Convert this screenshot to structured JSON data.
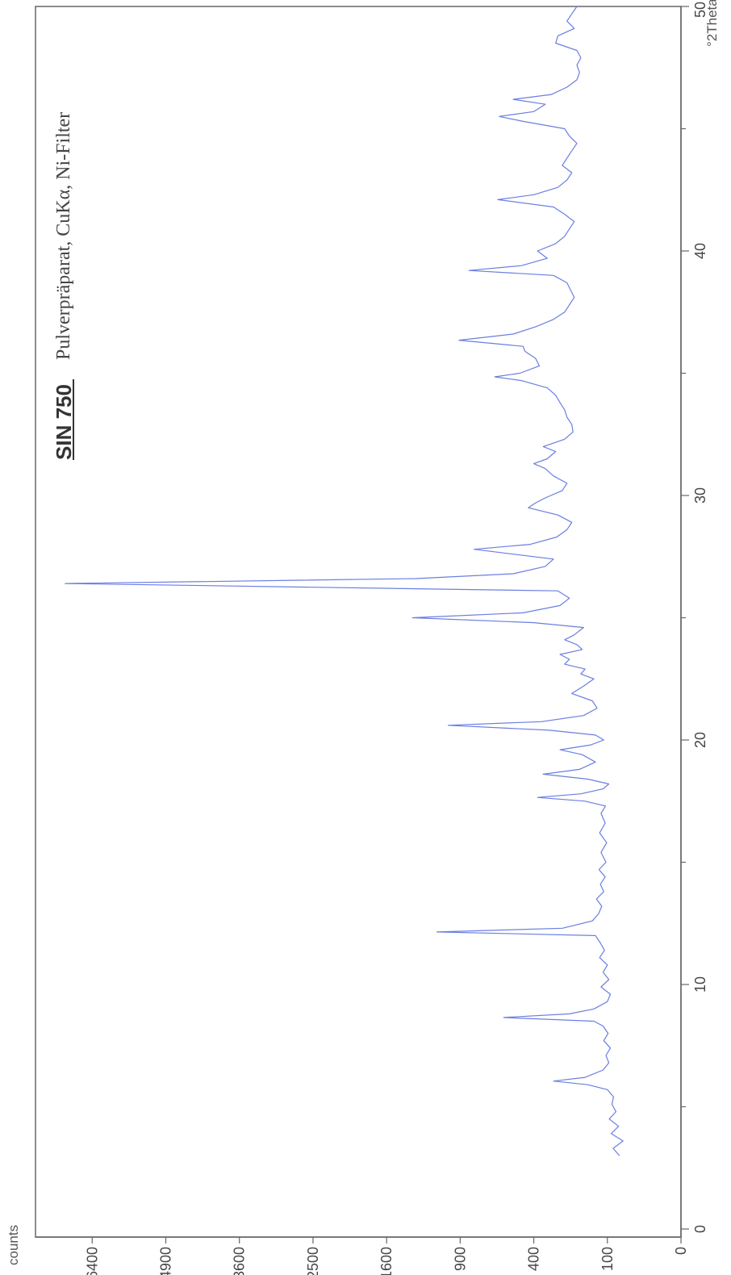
{
  "chart_data": {
    "type": "line",
    "title": "SIN 750",
    "subtitle": "Pulverpräparat, CuKα, Ni-Filter",
    "xlabel": "°2Theta",
    "ylabel": "counts",
    "xlim": [
      0,
      50
    ],
    "ylim": [
      0,
      7200
    ],
    "y_scale": "sqrt",
    "x_ticks": [
      "0",
      "10",
      "20",
      "30",
      "40",
      "50"
    ],
    "y_ticks": [
      "0",
      "100",
      "400",
      "900",
      "1600",
      "2500",
      "3600",
      "4900",
      "6400"
    ],
    "grid": false,
    "line_color": "#6b7ee0",
    "series": [
      {
        "points": [
          [
            3.0,
            70
          ],
          [
            3.3,
            85
          ],
          [
            3.6,
            62
          ],
          [
            3.9,
            90
          ],
          [
            4.2,
            72
          ],
          [
            4.5,
            95
          ],
          [
            4.8,
            78
          ],
          [
            5.1,
            88
          ],
          [
            5.4,
            84
          ],
          [
            5.7,
            100
          ],
          [
            5.9,
            160
          ],
          [
            6.05,
            300
          ],
          [
            6.2,
            170
          ],
          [
            6.5,
            112
          ],
          [
            6.8,
            96
          ],
          [
            7.1,
            104
          ],
          [
            7.4,
            92
          ],
          [
            7.7,
            110
          ],
          [
            8.0,
            98
          ],
          [
            8.3,
            112
          ],
          [
            8.5,
            140
          ],
          [
            8.65,
            580
          ],
          [
            8.8,
            230
          ],
          [
            9.0,
            140
          ],
          [
            9.3,
            100
          ],
          [
            9.6,
            92
          ],
          [
            9.9,
            118
          ],
          [
            10.2,
            96
          ],
          [
            10.5,
            112
          ],
          [
            10.8,
            100
          ],
          [
            11.1,
            122
          ],
          [
            11.4,
            108
          ],
          [
            11.7,
            120
          ],
          [
            12.0,
            135
          ],
          [
            12.15,
            1100
          ],
          [
            12.3,
            260
          ],
          [
            12.6,
            145
          ],
          [
            12.9,
            125
          ],
          [
            13.2,
            116
          ],
          [
            13.5,
            132
          ],
          [
            13.8,
            110
          ],
          [
            14.1,
            120
          ],
          [
            14.4,
            106
          ],
          [
            14.7,
            124
          ],
          [
            15.0,
            104
          ],
          [
            15.4,
            118
          ],
          [
            15.8,
            102
          ],
          [
            16.2,
            122
          ],
          [
            16.6,
            106
          ],
          [
            17.0,
            118
          ],
          [
            17.3,
            105
          ],
          [
            17.5,
            170
          ],
          [
            17.65,
            380
          ],
          [
            17.8,
            185
          ],
          [
            18.0,
            112
          ],
          [
            18.2,
            96
          ],
          [
            18.4,
            160
          ],
          [
            18.6,
            350
          ],
          [
            18.8,
            190
          ],
          [
            19.1,
            135
          ],
          [
            19.4,
            180
          ],
          [
            19.6,
            270
          ],
          [
            19.8,
            150
          ],
          [
            20.0,
            110
          ],
          [
            20.2,
            135
          ],
          [
            20.4,
            320
          ],
          [
            20.6,
            1000
          ],
          [
            20.75,
            360
          ],
          [
            21.0,
            175
          ],
          [
            21.3,
            130
          ],
          [
            21.6,
            145
          ],
          [
            21.9,
            220
          ],
          [
            22.2,
            175
          ],
          [
            22.5,
            140
          ],
          [
            22.7,
            185
          ],
          [
            22.9,
            170
          ],
          [
            23.1,
            250
          ],
          [
            23.3,
            230
          ],
          [
            23.5,
            270
          ],
          [
            23.7,
            180
          ],
          [
            23.9,
            200
          ],
          [
            24.1,
            250
          ],
          [
            24.3,
            210
          ],
          [
            24.6,
            175
          ],
          [
            24.8,
            400
          ],
          [
            25.0,
            1330
          ],
          [
            25.2,
            460
          ],
          [
            25.5,
            270
          ],
          [
            25.8,
            230
          ],
          [
            26.1,
            280
          ],
          [
            26.4,
            7000
          ],
          [
            26.6,
            1300
          ],
          [
            26.8,
            520
          ],
          [
            27.1,
            340
          ],
          [
            27.4,
            300
          ],
          [
            27.6,
            520
          ],
          [
            27.8,
            790
          ],
          [
            28.0,
            420
          ],
          [
            28.3,
            285
          ],
          [
            28.6,
            240
          ],
          [
            28.9,
            220
          ],
          [
            29.2,
            280
          ],
          [
            29.5,
            430
          ],
          [
            29.7,
            390
          ],
          [
            29.9,
            340
          ],
          [
            30.2,
            260
          ],
          [
            30.5,
            240
          ],
          [
            30.8,
            300
          ],
          [
            31.1,
            340
          ],
          [
            31.3,
            400
          ],
          [
            31.5,
            330
          ],
          [
            31.8,
            290
          ],
          [
            32.0,
            350
          ],
          [
            32.3,
            250
          ],
          [
            32.6,
            215
          ],
          [
            32.9,
            220
          ],
          [
            33.2,
            240
          ],
          [
            33.5,
            250
          ],
          [
            33.8,
            270
          ],
          [
            34.1,
            290
          ],
          [
            34.4,
            330
          ],
          [
            34.7,
            470
          ],
          [
            34.85,
            640
          ],
          [
            35.0,
            480
          ],
          [
            35.3,
            370
          ],
          [
            35.6,
            390
          ],
          [
            35.9,
            450
          ],
          [
            36.1,
            460
          ],
          [
            36.35,
            910
          ],
          [
            36.6,
            520
          ],
          [
            36.9,
            390
          ],
          [
            37.2,
            300
          ],
          [
            37.5,
            250
          ],
          [
            37.8,
            230
          ],
          [
            38.1,
            210
          ],
          [
            38.4,
            225
          ],
          [
            38.7,
            240
          ],
          [
            39.0,
            300
          ],
          [
            39.2,
            830
          ],
          [
            39.4,
            470
          ],
          [
            39.7,
            330
          ],
          [
            40.0,
            380
          ],
          [
            40.3,
            290
          ],
          [
            40.6,
            250
          ],
          [
            40.9,
            230
          ],
          [
            41.2,
            210
          ],
          [
            41.5,
            250
          ],
          [
            41.8,
            300
          ],
          [
            42.1,
            620
          ],
          [
            42.3,
            400
          ],
          [
            42.6,
            280
          ],
          [
            42.9,
            240
          ],
          [
            43.2,
            220
          ],
          [
            43.5,
            260
          ],
          [
            43.8,
            240
          ],
          [
            44.1,
            220
          ],
          [
            44.4,
            200
          ],
          [
            44.7,
            230
          ],
          [
            45.0,
            250
          ],
          [
            45.3,
            460
          ],
          [
            45.5,
            610
          ],
          [
            45.7,
            400
          ],
          [
            46.0,
            340
          ],
          [
            46.2,
            520
          ],
          [
            46.4,
            310
          ],
          [
            46.7,
            240
          ],
          [
            47.0,
            200
          ],
          [
            47.3,
            190
          ],
          [
            47.6,
            200
          ],
          [
            47.9,
            185
          ],
          [
            48.2,
            200
          ],
          [
            48.5,
            290
          ],
          [
            48.8,
            280
          ],
          [
            49.1,
            210
          ],
          [
            49.4,
            240
          ],
          [
            49.7,
            220
          ],
          [
            50.0,
            200
          ]
        ]
      }
    ]
  }
}
